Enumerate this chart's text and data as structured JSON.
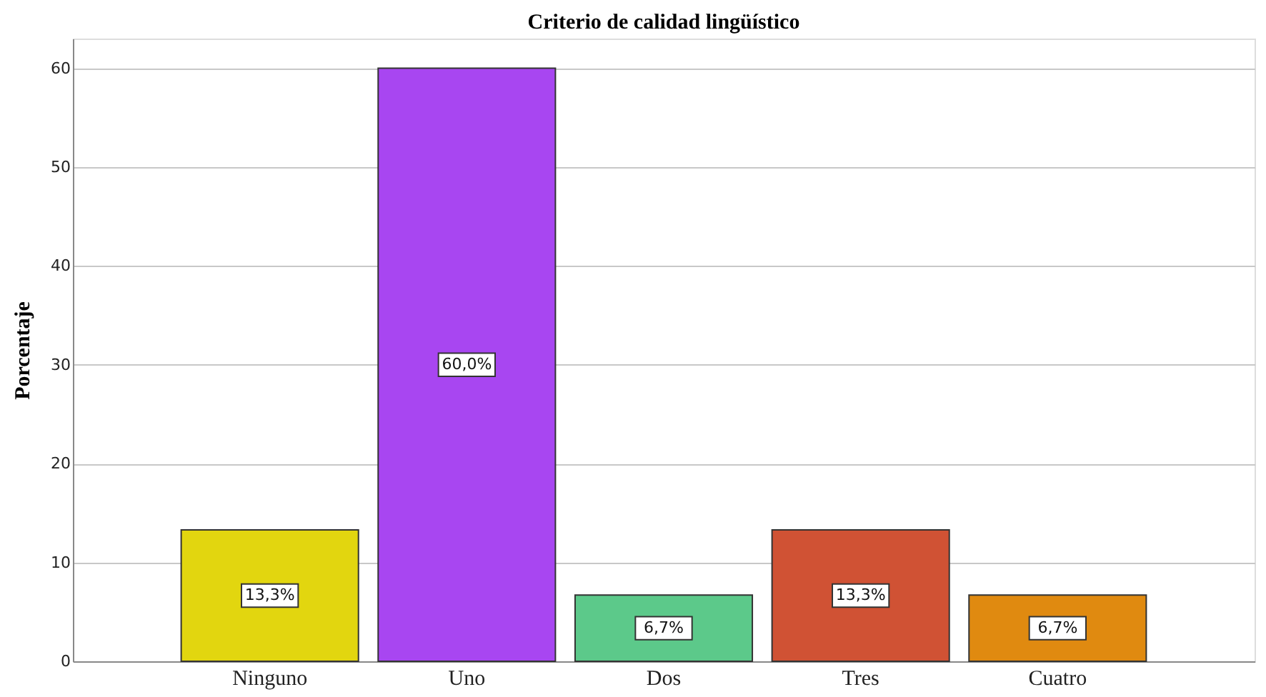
{
  "chart_data": {
    "type": "bar",
    "title": "Criterio de calidad lingüístico",
    "ylabel": "Porcentaje",
    "categories": [
      "Ninguno",
      "Uno",
      "Dos",
      "Tres",
      "Cuatro"
    ],
    "values": [
      13.3,
      60.0,
      6.7,
      13.3,
      6.7
    ],
    "colors": [
      "#e2d60f",
      "#a846f1",
      "#5cc98a",
      "#d05234",
      "#e08a10"
    ],
    "value_labels": [
      "13,3%",
      "60,0%",
      "6,7%",
      "13,3%",
      "6,7%"
    ],
    "ylim": [
      0,
      63
    ],
    "yticks": [
      0,
      10,
      20,
      30,
      40,
      50,
      60
    ],
    "grid": "y",
    "legend": false
  }
}
